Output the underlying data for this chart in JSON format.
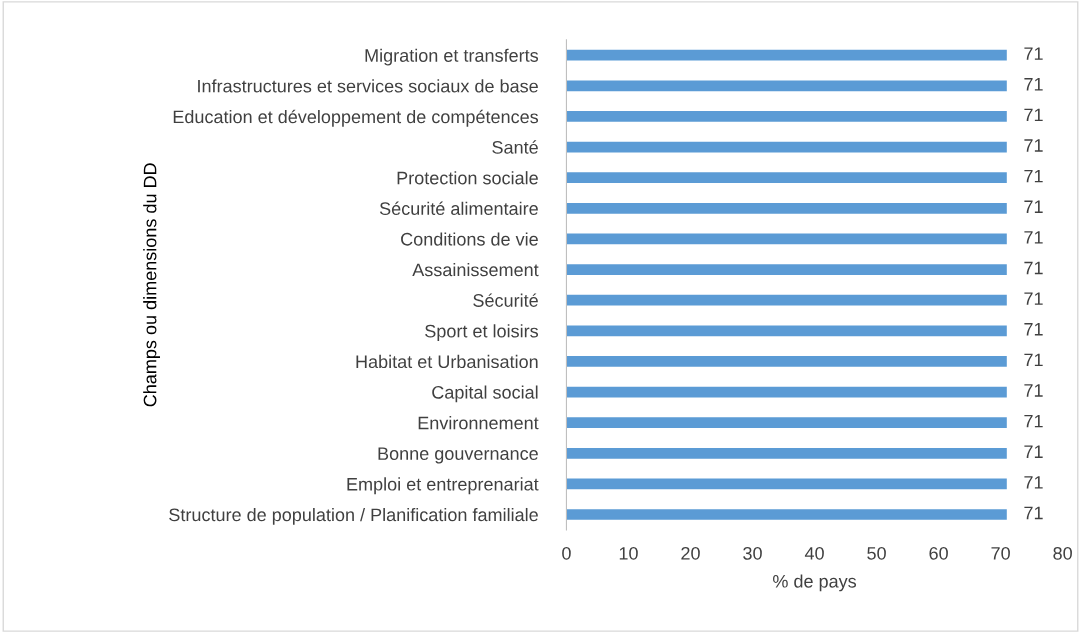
{
  "chart_data": {
    "type": "bar",
    "orientation": "horizontal",
    "ylabel": "Champs ou dimensions du DD",
    "xlabel": "% de pays",
    "categories": [
      "Migration et transferts",
      "Infrastructures et services sociaux de base",
      "Education et développement de compétences",
      "Santé",
      "Protection sociale",
      "Sécurité alimentaire",
      "Conditions de vie",
      "Assainissement",
      "Sécurité",
      "Sport et loisirs",
      "Habitat et Urbanisation",
      "Capital social",
      "Environnement",
      "Bonne gouvernance",
      "Emploi et entreprenariat",
      "Structure de population / Planification familiale"
    ],
    "values": [
      71,
      71,
      71,
      71,
      71,
      71,
      71,
      71,
      71,
      71,
      71,
      71,
      71,
      71,
      71,
      71
    ],
    "color": "#5b9bd5",
    "xlim": [
      0,
      80
    ],
    "xticks": [
      0,
      10,
      20,
      30,
      40,
      50,
      60,
      70,
      80
    ],
    "grid": false,
    "data_labels": true
  }
}
